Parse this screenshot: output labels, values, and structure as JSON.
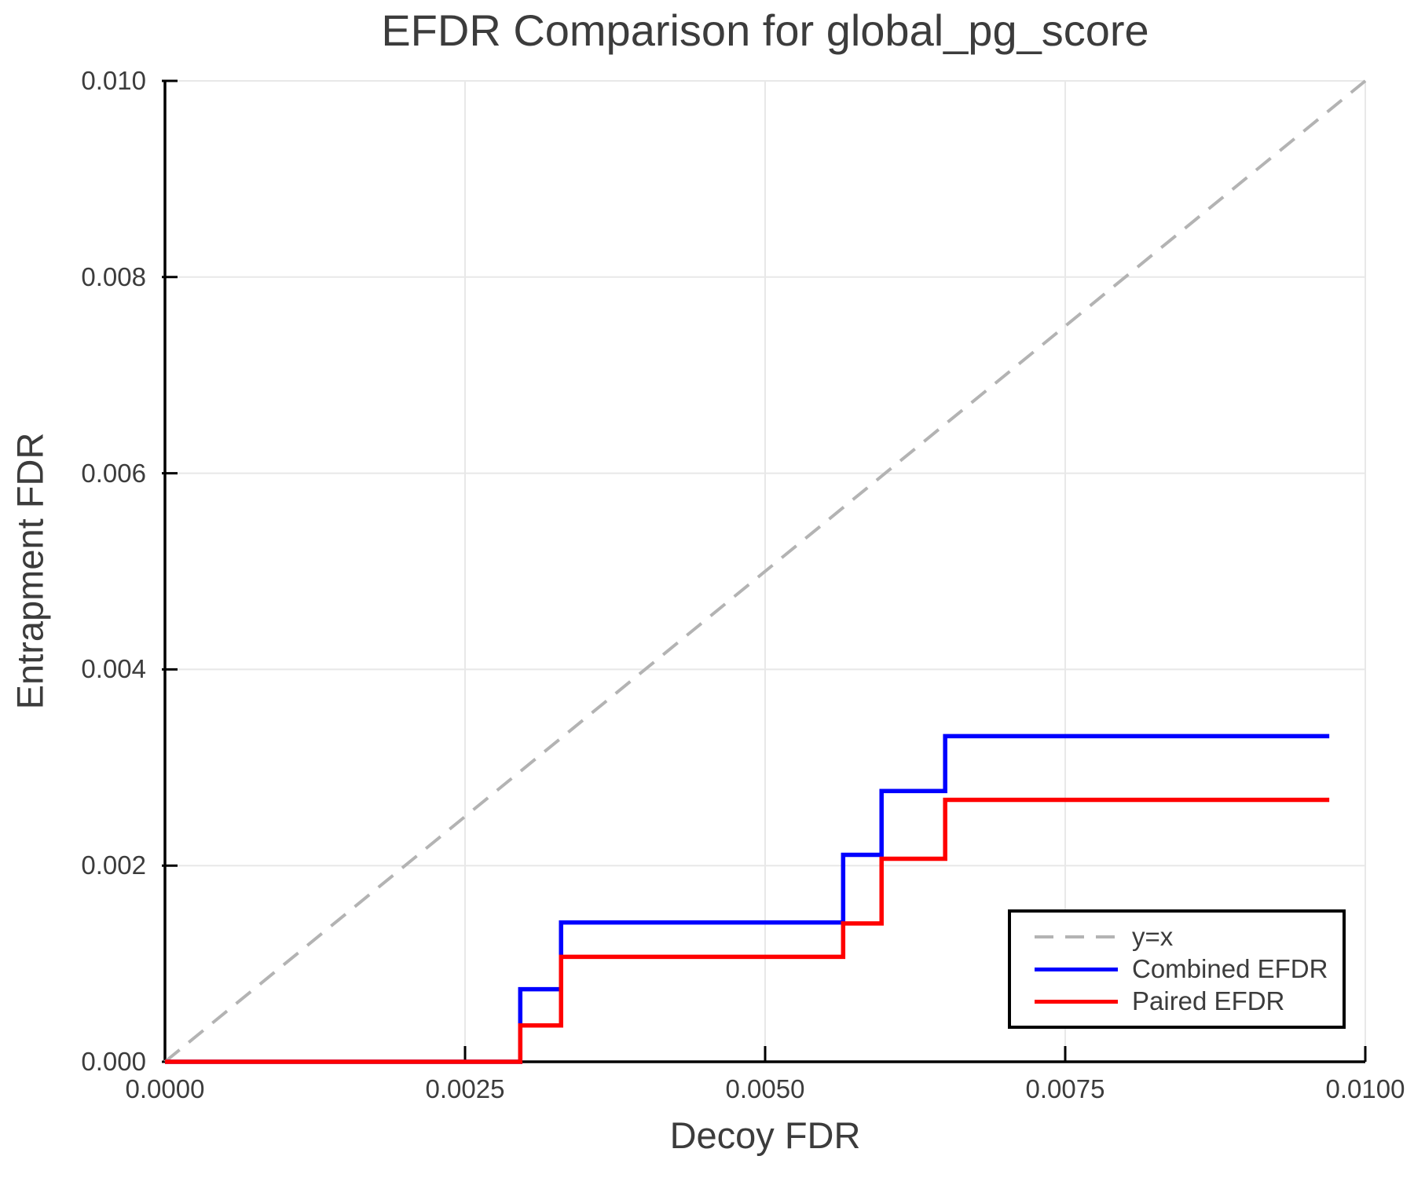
{
  "chart_data": {
    "type": "line",
    "title": "EFDR Comparison for global_pg_score",
    "xlabel": "Decoy FDR",
    "ylabel": "Entrapment FDR",
    "xlim": [
      0.0,
      0.01
    ],
    "ylim": [
      0.0,
      0.01
    ],
    "grid": true,
    "legend_position": "lower right",
    "xticks": {
      "values": [
        0.0,
        0.0025,
        0.005,
        0.0075,
        0.01
      ],
      "labels": [
        "0.0000",
        "0.0025",
        "0.0050",
        "0.0075",
        "0.0100"
      ]
    },
    "yticks": {
      "values": [
        0.0,
        0.002,
        0.004,
        0.006,
        0.008,
        0.01
      ],
      "labels": [
        "0.000",
        "0.002",
        "0.004",
        "0.006",
        "0.008",
        "0.010"
      ]
    },
    "colors": {
      "reference": "#b3b3b3",
      "combined": "#0000ff",
      "paired": "#ff0000",
      "grid": "#e8e8e8",
      "axis": "#000000",
      "text": "#3c3c3c"
    },
    "series": [
      {
        "name": "y=x",
        "type": "reference-line",
        "style": "dashed",
        "color": "#b3b3b3",
        "width": 4,
        "points": [
          [
            0.0,
            0.0
          ],
          [
            0.01,
            0.01
          ]
        ]
      },
      {
        "name": "Combined EFDR",
        "type": "step",
        "style": "solid",
        "color": "#0000ff",
        "width": 5.5,
        "points": [
          [
            0.0,
            0.0
          ],
          [
            0.00296,
            0.0
          ],
          [
            0.00296,
            0.00074
          ],
          [
            0.0033,
            0.00074
          ],
          [
            0.0033,
            0.00142
          ],
          [
            0.00565,
            0.00142
          ],
          [
            0.00565,
            0.00211
          ],
          [
            0.00597,
            0.00211
          ],
          [
            0.00597,
            0.00276
          ],
          [
            0.0065,
            0.00276
          ],
          [
            0.0065,
            0.00332
          ],
          [
            0.0097,
            0.00332
          ]
        ]
      },
      {
        "name": "Paired EFDR",
        "type": "step",
        "style": "solid",
        "color": "#ff0000",
        "width": 5.5,
        "points": [
          [
            0.0,
            0.0
          ],
          [
            0.00296,
            0.0
          ],
          [
            0.00296,
            0.00037
          ],
          [
            0.0033,
            0.00037
          ],
          [
            0.0033,
            0.00107
          ],
          [
            0.00565,
            0.00107
          ],
          [
            0.00565,
            0.00141
          ],
          [
            0.00597,
            0.00141
          ],
          [
            0.00597,
            0.00207
          ],
          [
            0.0065,
            0.00207
          ],
          [
            0.0065,
            0.00267
          ],
          [
            0.0097,
            0.00267
          ]
        ]
      }
    ]
  }
}
